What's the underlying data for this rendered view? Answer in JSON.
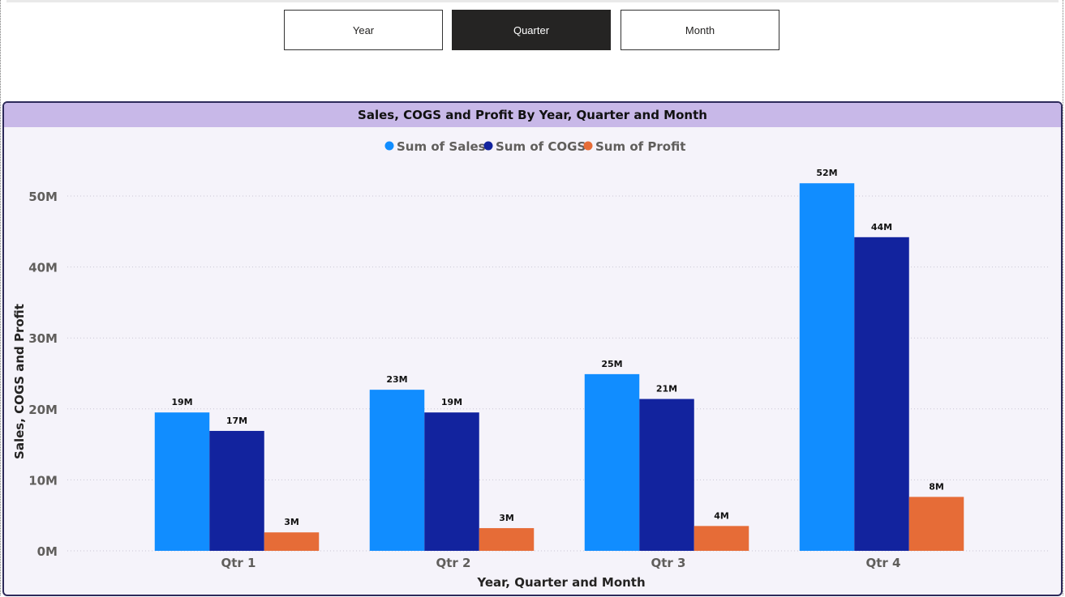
{
  "toggles": [
    {
      "label": "Year",
      "active": false
    },
    {
      "label": "Quarter",
      "active": true
    },
    {
      "label": "Month",
      "active": false
    }
  ],
  "chart_data": {
    "type": "bar",
    "title": "Sales, COGS and Profit By Year, Quarter and Month",
    "xlabel": "Year, Quarter and Month",
    "ylabel": "Sales, COGS and Profit",
    "categories": [
      "Qtr 1",
      "Qtr 2",
      "Qtr 3",
      "Qtr 4"
    ],
    "series": [
      {
        "name": "Sum of  Sales",
        "color": "#118DFF",
        "values": [
          19.5,
          22.7,
          24.9,
          51.8
        ],
        "labels": [
          "19M",
          "23M",
          "25M",
          "52M"
        ]
      },
      {
        "name": "Sum of COGS",
        "color": "#12239E",
        "values": [
          16.9,
          19.5,
          21.4,
          44.2
        ],
        "labels": [
          "17M",
          "19M",
          "21M",
          "44M"
        ]
      },
      {
        "name": "Sum of Profit",
        "color": "#E66C37",
        "values": [
          2.6,
          3.2,
          3.5,
          7.6
        ],
        "labels": [
          "3M",
          "3M",
          "4M",
          "8M"
        ]
      }
    ],
    "yticks": [
      0,
      10,
      20,
      30,
      40,
      50
    ],
    "ytick_labels": [
      "0M",
      "10M",
      "20M",
      "30M",
      "40M",
      "50M"
    ],
    "ylim": [
      0,
      50
    ],
    "grid": true,
    "legend_position": "top-center"
  }
}
